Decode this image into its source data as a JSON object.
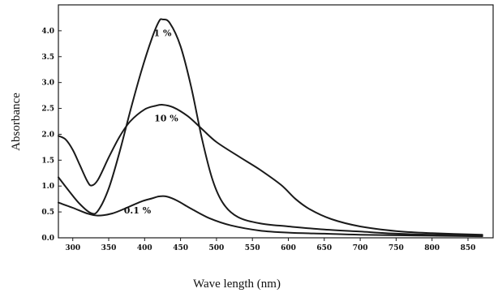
{
  "chart_data": {
    "type": "line",
    "title": "",
    "xlabel": "Wave length (nm)",
    "ylabel": "Absorbance",
    "xlim": [
      280,
      885
    ],
    "ylim": [
      0,
      4.5
    ],
    "xticks": [
      300,
      350,
      400,
      450,
      500,
      550,
      600,
      650,
      700,
      750,
      800,
      850
    ],
    "yticks": [
      0.0,
      0.5,
      1.0,
      1.5,
      2.0,
      2.5,
      3.0,
      3.5,
      4.0
    ],
    "ytick_labels": [
      "0.0",
      "0.5",
      "1.0",
      "1.5",
      "2.0",
      "2.5",
      "3.0",
      "3.5",
      "4.0"
    ],
    "grid": false,
    "series": [
      {
        "name": "1 %",
        "label_at": [
          425,
          3.9
        ],
        "points": [
          [
            280,
            1.17
          ],
          [
            295,
            0.9
          ],
          [
            310,
            0.65
          ],
          [
            325,
            0.48
          ],
          [
            335,
            0.52
          ],
          [
            350,
            0.95
          ],
          [
            365,
            1.65
          ],
          [
            380,
            2.45
          ],
          [
            395,
            3.2
          ],
          [
            410,
            3.85
          ],
          [
            420,
            4.18
          ],
          [
            425,
            4.22
          ],
          [
            435,
            4.15
          ],
          [
            450,
            3.7
          ],
          [
            465,
            2.9
          ],
          [
            480,
            1.9
          ],
          [
            495,
            1.1
          ],
          [
            510,
            0.65
          ],
          [
            530,
            0.4
          ],
          [
            560,
            0.28
          ],
          [
            600,
            0.22
          ],
          [
            650,
            0.16
          ],
          [
            700,
            0.12
          ],
          [
            750,
            0.08
          ],
          [
            800,
            0.06
          ],
          [
            870,
            0.05
          ]
        ]
      },
      {
        "name": "10 %",
        "label_at": [
          430,
          2.25
        ],
        "points": [
          [
            280,
            1.97
          ],
          [
            290,
            1.9
          ],
          [
            300,
            1.7
          ],
          [
            310,
            1.4
          ],
          [
            320,
            1.1
          ],
          [
            326,
            1.01
          ],
          [
            335,
            1.12
          ],
          [
            350,
            1.55
          ],
          [
            365,
            1.95
          ],
          [
            380,
            2.25
          ],
          [
            400,
            2.48
          ],
          [
            415,
            2.55
          ],
          [
            425,
            2.57
          ],
          [
            440,
            2.52
          ],
          [
            460,
            2.35
          ],
          [
            480,
            2.1
          ],
          [
            500,
            1.85
          ],
          [
            530,
            1.58
          ],
          [
            560,
            1.32
          ],
          [
            590,
            1.02
          ],
          [
            610,
            0.75
          ],
          [
            630,
            0.55
          ],
          [
            660,
            0.36
          ],
          [
            700,
            0.22
          ],
          [
            750,
            0.13
          ],
          [
            800,
            0.09
          ],
          [
            870,
            0.06
          ]
        ]
      },
      {
        "name": "0.1 %",
        "label_at": [
          390,
          0.47
        ],
        "points": [
          [
            280,
            0.68
          ],
          [
            300,
            0.58
          ],
          [
            320,
            0.47
          ],
          [
            335,
            0.43
          ],
          [
            355,
            0.47
          ],
          [
            375,
            0.58
          ],
          [
            395,
            0.7
          ],
          [
            410,
            0.76
          ],
          [
            420,
            0.8
          ],
          [
            430,
            0.8
          ],
          [
            445,
            0.72
          ],
          [
            465,
            0.56
          ],
          [
            490,
            0.38
          ],
          [
            520,
            0.24
          ],
          [
            560,
            0.14
          ],
          [
            600,
            0.1
          ],
          [
            650,
            0.08
          ],
          [
            700,
            0.06
          ],
          [
            800,
            0.04
          ],
          [
            870,
            0.03
          ]
        ]
      }
    ]
  }
}
